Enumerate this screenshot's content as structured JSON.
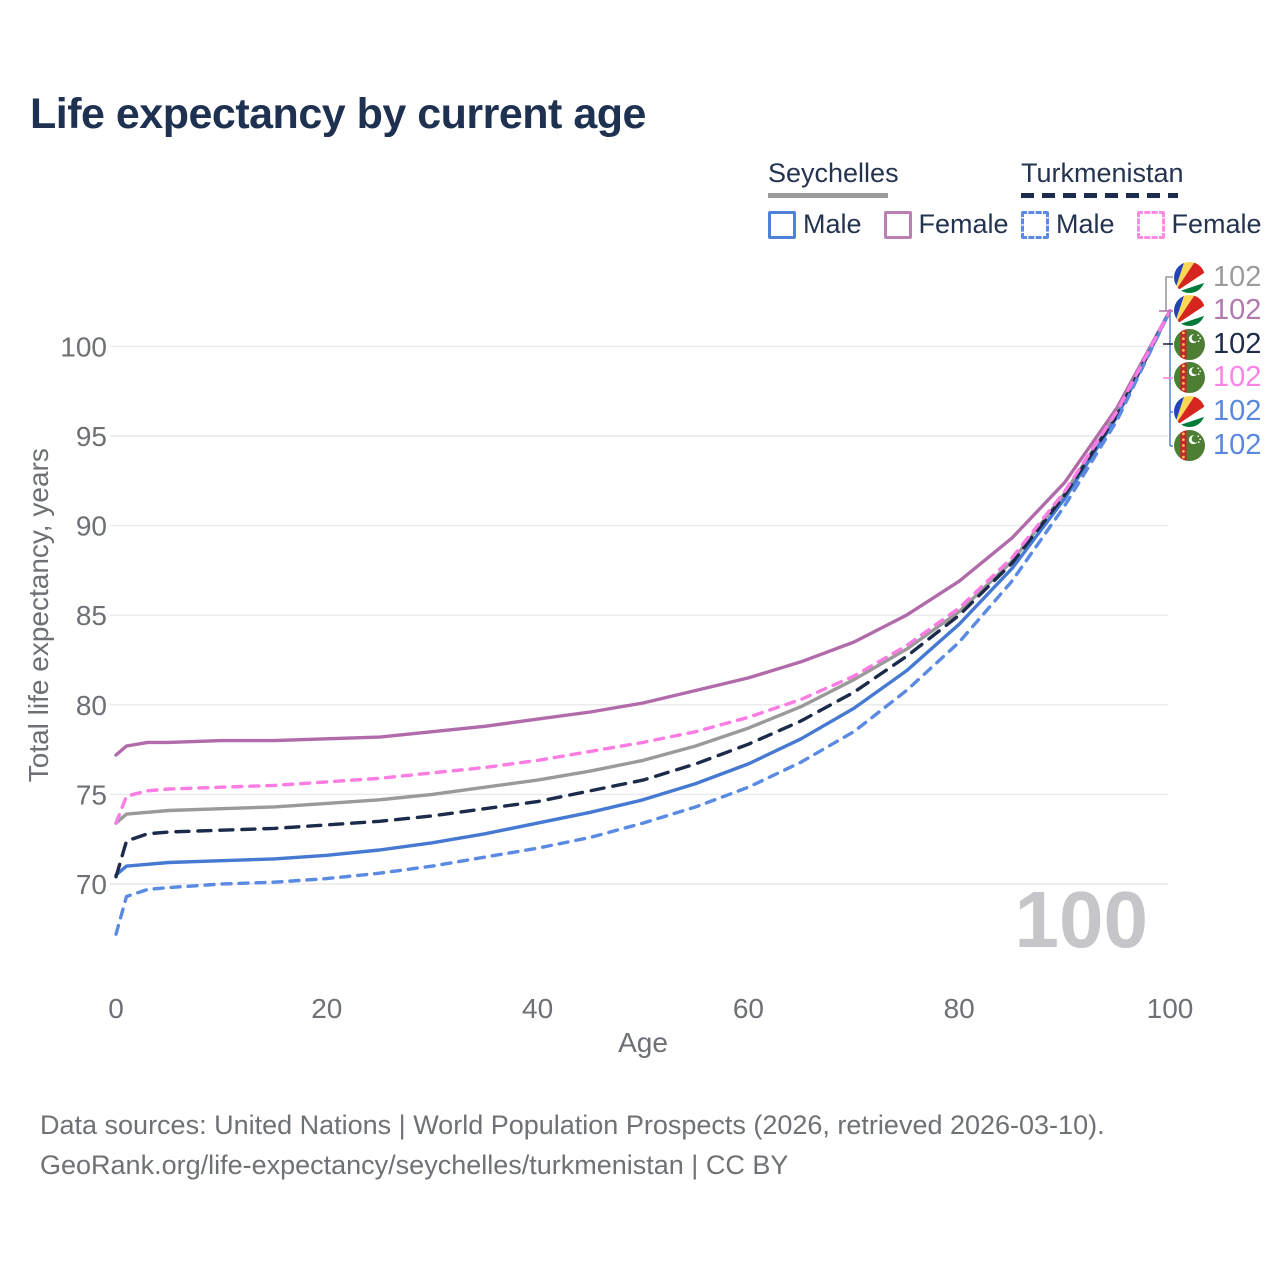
{
  "title": "Life expectancy by current age",
  "legend": {
    "groups": [
      {
        "country": "Seychelles",
        "line_color": "#9b9b9b",
        "line_style": "solid",
        "items": [
          {
            "label": "Male",
            "color": "#4f81d8",
            "style": "solid"
          },
          {
            "label": "Female",
            "color": "#bc7fb2",
            "style": "solid"
          }
        ]
      },
      {
        "country": "Turkmenistan",
        "line_color": "#1d2c4e",
        "line_style": "dashed",
        "items": [
          {
            "label": "Male",
            "color": "#5b8ae2",
            "style": "dashed"
          },
          {
            "label": "Female",
            "color": "#fc8ce3",
            "style": "dashed"
          }
        ]
      }
    ]
  },
  "chart_data": {
    "type": "line",
    "title": "Life expectancy by current age",
    "xlabel": "Age",
    "ylabel": "Total life expectancy, years",
    "xlim": [
      0,
      100
    ],
    "ylim": [
      66.5,
      103
    ],
    "x_ticks": [
      0,
      20,
      40,
      60,
      80,
      100
    ],
    "y_ticks": [
      70,
      75,
      80,
      85,
      90,
      95,
      100
    ],
    "grid": "horizontal",
    "legend_position": "top-right",
    "x": [
      0,
      1,
      3,
      5,
      10,
      15,
      20,
      25,
      30,
      35,
      40,
      45,
      50,
      55,
      60,
      65,
      70,
      75,
      80,
      85,
      90,
      95,
      100
    ],
    "series": [
      {
        "name": "Seychelles Female",
        "country": "Seychelles",
        "sex": "female",
        "color": "#b16bab",
        "dash": "solid",
        "values": [
          77.2,
          77.7,
          77.9,
          77.9,
          78.0,
          78.0,
          78.1,
          78.2,
          78.5,
          78.8,
          79.2,
          79.6,
          80.1,
          80.8,
          81.5,
          82.4,
          83.5,
          85.0,
          86.9,
          89.3,
          92.4,
          96.6,
          102
        ]
      },
      {
        "name": "Seychelles",
        "country": "Seychelles",
        "sex": "both",
        "color": "#9a9a9a",
        "dash": "solid",
        "values": [
          73.4,
          73.9,
          74.0,
          74.1,
          74.2,
          74.3,
          74.5,
          74.7,
          75.0,
          75.4,
          75.8,
          76.3,
          76.9,
          77.7,
          78.7,
          79.9,
          81.4,
          83.1,
          85.2,
          88.0,
          91.8,
          96.3,
          102
        ]
      },
      {
        "name": "Seychelles Male",
        "country": "Seychelles",
        "sex": "male",
        "color": "#4579d2",
        "dash": "solid",
        "values": [
          70.5,
          71.0,
          71.1,
          71.2,
          71.3,
          71.4,
          71.6,
          71.9,
          72.3,
          72.8,
          73.4,
          74.0,
          74.7,
          75.6,
          76.7,
          78.1,
          79.8,
          81.9,
          84.5,
          87.6,
          91.5,
          96.1,
          102
        ]
      },
      {
        "name": "Turkmenistan",
        "country": "Turkmenistan",
        "sex": "both",
        "color": "#1c2b4a",
        "dash": "dashed",
        "values": [
          70.4,
          72.4,
          72.8,
          72.9,
          73.0,
          73.1,
          73.3,
          73.5,
          73.8,
          74.2,
          74.6,
          75.2,
          75.8,
          76.7,
          77.8,
          79.1,
          80.7,
          82.7,
          85.0,
          87.9,
          91.7,
          96.2,
          102
        ]
      },
      {
        "name": "Turkmenistan Male",
        "country": "Turkmenistan",
        "sex": "male",
        "color": "#5b8ae2",
        "dash": "dashed",
        "values": [
          67.2,
          69.3,
          69.7,
          69.8,
          70.0,
          70.1,
          70.3,
          70.6,
          71.0,
          71.5,
          72.0,
          72.6,
          73.4,
          74.3,
          75.4,
          76.8,
          78.5,
          80.8,
          83.5,
          86.9,
          91.1,
          95.9,
          102
        ]
      },
      {
        "name": "Turkmenistan Female",
        "country": "Turkmenistan",
        "sex": "female",
        "color": "#fb7ce2",
        "dash": "dashed",
        "values": [
          73.4,
          74.9,
          75.2,
          75.3,
          75.4,
          75.5,
          75.7,
          75.9,
          76.2,
          76.5,
          76.9,
          77.4,
          77.9,
          78.5,
          79.3,
          80.3,
          81.6,
          83.3,
          85.4,
          88.2,
          91.9,
          96.4,
          102
        ]
      }
    ],
    "end_labels": [
      {
        "flag": "seychelles",
        "series": "Seychelles",
        "value": "102",
        "color": "#9b9ba0"
      },
      {
        "flag": "seychelles",
        "series": "Seychelles Female",
        "value": "102",
        "color": "#b279ae"
      },
      {
        "flag": "turkmenistan",
        "series": "Turkmenistan",
        "value": "102",
        "color": "#1e2b49"
      },
      {
        "flag": "turkmenistan",
        "series": "Turkmenistan Female",
        "value": "102",
        "color": "#fb85e6"
      },
      {
        "flag": "seychelles",
        "series": "Seychelles Male",
        "value": "102",
        "color": "#5b87dd"
      },
      {
        "flag": "turkmenistan",
        "series": "Turkmenistan Male",
        "value": "102",
        "color": "#5b87dd"
      }
    ],
    "hover_age_label": "100",
    "colors": {
      "grid": "#eaeaee",
      "tick_text": "#6d7074",
      "title_text": "#1e3150",
      "watermark": "#c6c6ca"
    }
  },
  "footer": {
    "line1": "Data sources: United Nations | World Population Prospects (2026, retrieved 2026-03-10).",
    "line2": "GeoRank.org/life-expectancy/seychelles/turkmenistan | CC BY"
  }
}
